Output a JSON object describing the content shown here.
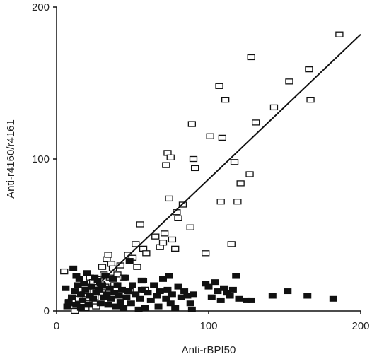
{
  "chart_data": {
    "type": "scatter",
    "title": "",
    "xlabel": "Anti-rBPI50",
    "ylabel": "Anti-r4160/r4161",
    "xlim": [
      0,
      200
    ],
    "ylim": [
      0,
      200
    ],
    "xticks": [
      "0",
      "100",
      "200"
    ],
    "yticks": [
      "0",
      "100",
      "200"
    ],
    "grid": false,
    "legend": "none",
    "colors": {
      "axis": "#111111",
      "open_marker": "#111111",
      "filled_marker": "#111111",
      "regression_line": "#111111"
    },
    "series": [
      {
        "marker": "open-square",
        "points": [
          [
            5,
            26
          ],
          [
            8,
            5
          ],
          [
            10,
            7
          ],
          [
            12,
            0
          ],
          [
            13,
            4
          ],
          [
            15,
            8
          ],
          [
            17,
            6
          ],
          [
            18,
            11
          ],
          [
            19,
            2
          ],
          [
            20,
            13
          ],
          [
            21,
            5
          ],
          [
            22,
            22
          ],
          [
            23,
            16
          ],
          [
            24,
            19
          ],
          [
            25,
            9
          ],
          [
            26,
            3
          ],
          [
            27,
            14
          ],
          [
            28,
            21
          ],
          [
            29,
            18
          ],
          [
            30,
            12
          ],
          [
            30,
            29
          ],
          [
            31,
            24
          ],
          [
            32,
            16
          ],
          [
            33,
            34
          ],
          [
            34,
            37
          ],
          [
            35,
            22
          ],
          [
            36,
            31
          ],
          [
            37,
            28
          ],
          [
            38,
            17
          ],
          [
            40,
            24
          ],
          [
            42,
            30
          ],
          [
            44,
            22
          ],
          [
            47,
            37
          ],
          [
            48,
            13
          ],
          [
            50,
            35
          ],
          [
            52,
            44
          ],
          [
            53,
            29
          ],
          [
            55,
            57
          ],
          [
            56,
            20
          ],
          [
            57,
            41
          ],
          [
            58,
            14
          ],
          [
            59,
            38
          ],
          [
            65,
            49
          ],
          [
            68,
            42
          ],
          [
            70,
            45
          ],
          [
            71,
            51
          ],
          [
            72,
            96
          ],
          [
            73,
            104
          ],
          [
            74,
            74
          ],
          [
            75,
            101
          ],
          [
            76,
            47
          ],
          [
            78,
            41
          ],
          [
            79,
            65
          ],
          [
            80,
            61
          ],
          [
            83,
            70
          ],
          [
            88,
            55
          ],
          [
            89,
            123
          ],
          [
            90,
            100
          ],
          [
            91,
            94
          ],
          [
            98,
            38
          ],
          [
            101,
            115
          ],
          [
            107,
            148
          ],
          [
            108,
            72
          ],
          [
            109,
            114
          ],
          [
            111,
            139
          ],
          [
            115,
            44
          ],
          [
            117,
            98
          ],
          [
            119,
            72
          ],
          [
            121,
            84
          ],
          [
            127,
            90
          ],
          [
            128,
            167
          ],
          [
            131,
            124
          ],
          [
            143,
            134
          ],
          [
            153,
            151
          ],
          [
            166,
            159
          ],
          [
            167,
            139
          ],
          [
            186,
            182
          ]
        ]
      },
      {
        "marker": "filled-square",
        "points": [
          [
            6,
            15
          ],
          [
            7,
            3
          ],
          [
            8,
            6
          ],
          [
            10,
            9
          ],
          [
            11,
            28
          ],
          [
            12,
            13
          ],
          [
            13,
            4
          ],
          [
            13,
            23
          ],
          [
            14,
            17
          ],
          [
            15,
            21
          ],
          [
            16,
            11
          ],
          [
            16,
            2
          ],
          [
            17,
            7
          ],
          [
            18,
            18
          ],
          [
            19,
            14
          ],
          [
            20,
            25
          ],
          [
            21,
            4
          ],
          [
            22,
            10
          ],
          [
            23,
            16
          ],
          [
            24,
            8
          ],
          [
            25,
            22
          ],
          [
            26,
            12
          ],
          [
            27,
            20
          ],
          [
            28,
            14
          ],
          [
            29,
            5
          ],
          [
            30,
            17
          ],
          [
            31,
            9
          ],
          [
            32,
            23
          ],
          [
            33,
            11
          ],
          [
            34,
            4
          ],
          [
            35,
            15
          ],
          [
            36,
            8
          ],
          [
            37,
            21
          ],
          [
            38,
            12
          ],
          [
            39,
            3
          ],
          [
            40,
            17
          ],
          [
            41,
            10
          ],
          [
            42,
            6
          ],
          [
            43,
            14
          ],
          [
            44,
            2
          ],
          [
            45,
            22
          ],
          [
            46,
            9
          ],
          [
            47,
            13
          ],
          [
            48,
            33
          ],
          [
            49,
            5
          ],
          [
            50,
            17
          ],
          [
            52,
            11
          ],
          [
            54,
            1
          ],
          [
            55,
            8
          ],
          [
            56,
            14
          ],
          [
            57,
            20
          ],
          [
            58,
            2
          ],
          [
            60,
            12
          ],
          [
            62,
            7
          ],
          [
            64,
            17
          ],
          [
            66,
            10
          ],
          [
            67,
            3
          ],
          [
            68,
            13
          ],
          [
            70,
            21
          ],
          [
            72,
            8
          ],
          [
            73,
            14
          ],
          [
            74,
            23
          ],
          [
            75,
            5
          ],
          [
            76,
            11
          ],
          [
            78,
            2
          ],
          [
            80,
            16
          ],
          [
            82,
            9
          ],
          [
            84,
            13
          ],
          [
            86,
            10
          ],
          [
            88,
            5
          ],
          [
            89,
            1
          ],
          [
            90,
            11
          ],
          [
            98,
            18
          ],
          [
            100,
            16
          ],
          [
            102,
            9
          ],
          [
            104,
            19
          ],
          [
            106,
            13
          ],
          [
            108,
            7
          ],
          [
            110,
            15
          ],
          [
            112,
            12
          ],
          [
            114,
            10
          ],
          [
            116,
            14
          ],
          [
            118,
            23
          ],
          [
            120,
            8
          ],
          [
            125,
            7
          ],
          [
            128,
            7
          ],
          [
            142,
            10
          ],
          [
            152,
            13
          ],
          [
            165,
            10
          ],
          [
            182,
            8
          ]
        ]
      }
    ],
    "regression_line": {
      "from": [
        30,
        20
      ],
      "to": [
        200,
        182
      ]
    }
  }
}
